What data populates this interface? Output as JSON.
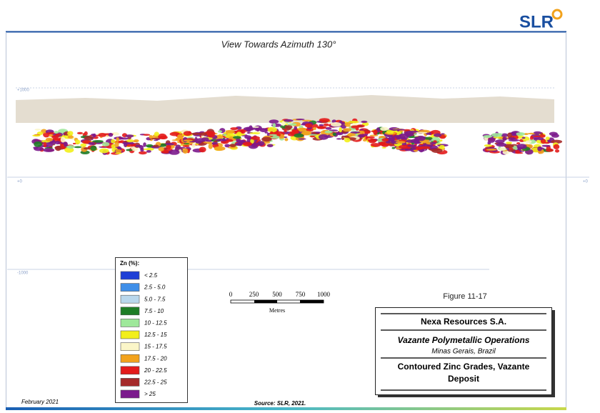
{
  "logo": "SLR",
  "view_title": "View Towards Azimuth 130°",
  "elevation_labels": {
    "top": "+1000",
    "zero_left": "+0",
    "zero_right": "+0",
    "bottom": "-1000"
  },
  "legend": {
    "title": "Zn (%):",
    "items": [
      {
        "label": "< 2.5",
        "color": "#1f3fd6"
      },
      {
        "label": "2.5 - 5.0",
        "color": "#3f8fe8"
      },
      {
        "label": "5.0 - 7.5",
        "color": "#b9d7ec"
      },
      {
        "label": "7.5 - 10",
        "color": "#1e7d26"
      },
      {
        "label": "10 - 12.5",
        "color": "#9ee89a"
      },
      {
        "label": "12.5 - 15",
        "color": "#f2ef1a"
      },
      {
        "label": "15 - 17.5",
        "color": "#fbf6c8"
      },
      {
        "label": "17.5 - 20",
        "color": "#f2a21c"
      },
      {
        "label": "20 - 22.5",
        "color": "#e31b1b"
      },
      {
        "label": "22.5 - 25",
        "color": "#a52a2a"
      },
      {
        "label": "> 25",
        "color": "#7b1a8c"
      }
    ]
  },
  "scale_bar": {
    "labels": [
      "0",
      "250",
      "500",
      "750",
      "1000"
    ],
    "unit": "Metres"
  },
  "figure_number": "Figure 11-17",
  "title_block": {
    "company": "Nexa Resources S.A.",
    "project": "Vazante Polymetallic Operations",
    "location": "Minas Gerais, Brazil",
    "caption": "Contoured Zinc Grades, Vazante Deposit"
  },
  "footer": {
    "date": "February 2021",
    "source": "Source: SLR, 2021."
  }
}
